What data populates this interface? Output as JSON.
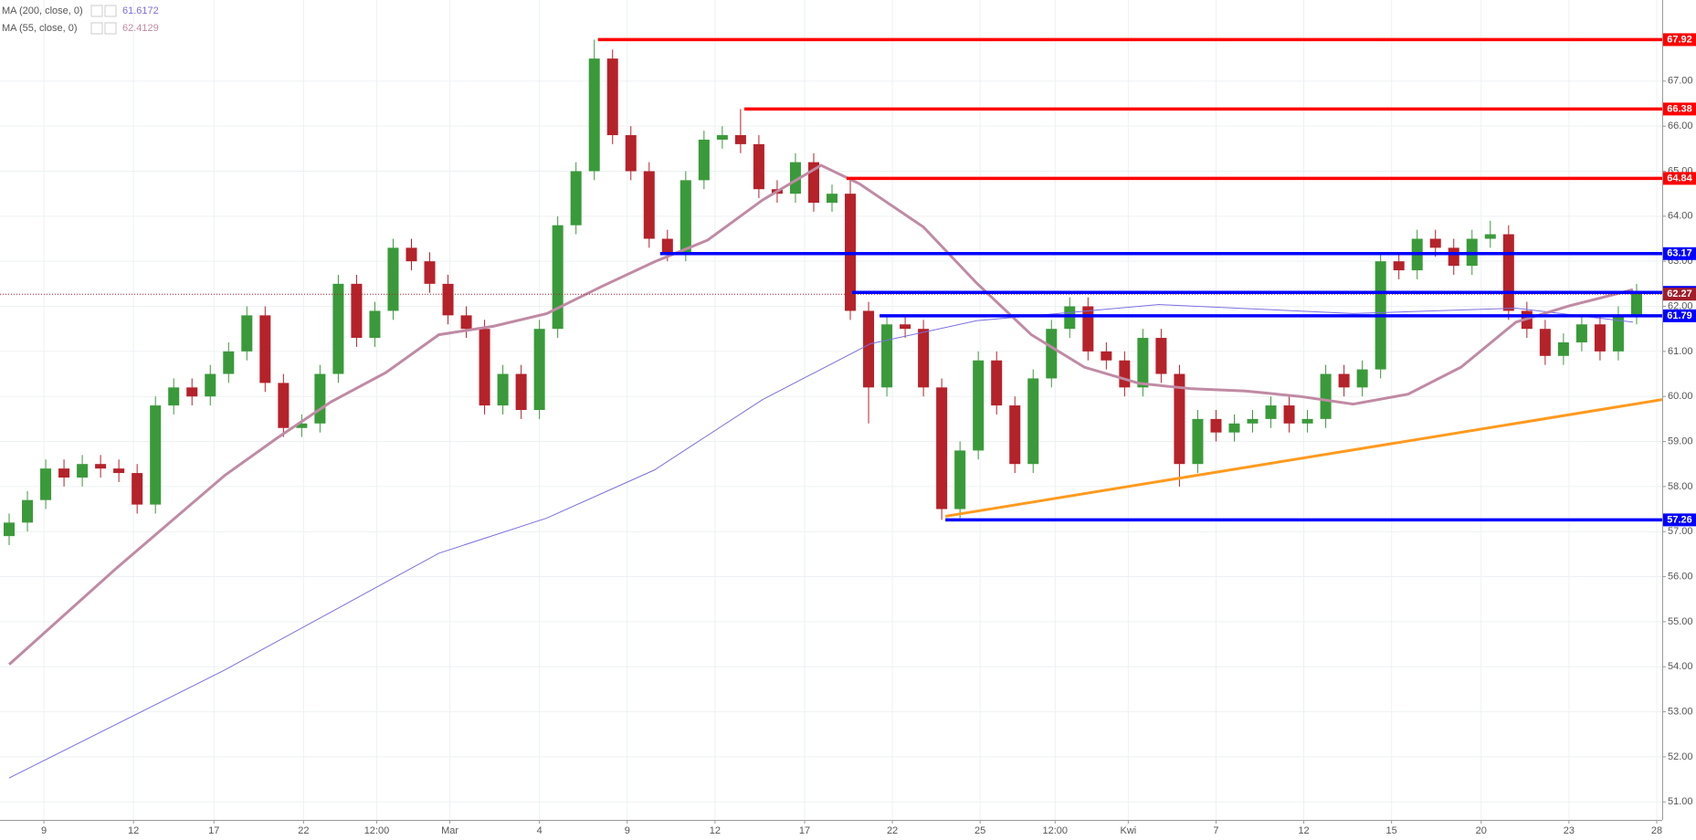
{
  "chart_data": {
    "type": "candlestick",
    "xlim": [
      -0.5,
      90.4
    ],
    "ylim": [
      50.6,
      68.8
    ],
    "xticks": [
      {
        "value": 1.9,
        "label": "9"
      },
      {
        "value": 6.8,
        "label": "12"
      },
      {
        "value": 11.2,
        "label": "17"
      },
      {
        "value": 16.1,
        "label": "22"
      },
      {
        "value": 20.1,
        "label": "12:00"
      },
      {
        "value": 24.1,
        "label": "Mar"
      },
      {
        "value": 29.0,
        "label": "4"
      },
      {
        "value": 33.8,
        "label": "9"
      },
      {
        "value": 38.6,
        "label": "12"
      },
      {
        "value": 43.5,
        "label": "17"
      },
      {
        "value": 48.3,
        "label": "22"
      },
      {
        "value": 53.1,
        "label": "25"
      },
      {
        "value": 57.2,
        "label": "12:00"
      },
      {
        "value": 61.2,
        "label": "Kwi"
      },
      {
        "value": 66.0,
        "label": "7"
      },
      {
        "value": 70.8,
        "label": "12"
      },
      {
        "value": 75.6,
        "label": "15"
      },
      {
        "value": 80.5,
        "label": "20"
      },
      {
        "value": 85.3,
        "label": "23"
      },
      {
        "value": 90.1,
        "label": "28"
      }
    ],
    "yticks": [
      {
        "value": 51,
        "label": "51.00"
      },
      {
        "value": 52,
        "label": "52.00"
      },
      {
        "value": 53,
        "label": "53.00"
      },
      {
        "value": 54,
        "label": "54.00"
      },
      {
        "value": 55,
        "label": "55.00"
      },
      {
        "value": 56,
        "label": "56.00"
      },
      {
        "value": 57,
        "label": "57.00"
      },
      {
        "value": 58,
        "label": "58.00"
      },
      {
        "value": 59,
        "label": "59.00"
      },
      {
        "value": 60,
        "label": "60.00"
      },
      {
        "value": 61,
        "label": "61.00"
      },
      {
        "value": 62,
        "label": "62.00"
      },
      {
        "value": 63,
        "label": "63.00"
      },
      {
        "value": 64,
        "label": "64.00"
      },
      {
        "value": 65,
        "label": "65.00"
      },
      {
        "value": 66,
        "label": "66.00"
      },
      {
        "value": 67,
        "label": "67.00"
      }
    ],
    "grid": true,
    "up_color": "#3a9a3a",
    "down_color": "#b5222a",
    "x": [
      0,
      1,
      2,
      3,
      4,
      5,
      6,
      7,
      8,
      9,
      10,
      11,
      12,
      13,
      14,
      15,
      16,
      17,
      18,
      19,
      20,
      21,
      22,
      23,
      24,
      25,
      26,
      27,
      28,
      29,
      30,
      31,
      32,
      33,
      34,
      35,
      36,
      37,
      38,
      39,
      40,
      41,
      42,
      43,
      44,
      45,
      46,
      47,
      48,
      49,
      50,
      51,
      52,
      53,
      54,
      55,
      56,
      57,
      58,
      59,
      60,
      61,
      62,
      63,
      64,
      65,
      66,
      67,
      68,
      69,
      70,
      71,
      72,
      73,
      74,
      75,
      76,
      77,
      78,
      79,
      80,
      81,
      82,
      83,
      84,
      85,
      86,
      87,
      88,
      89
    ],
    "open": [
      56.9,
      57.2,
      57.7,
      58.4,
      58.2,
      58.5,
      58.4,
      58.3,
      57.6,
      59.8,
      60.2,
      60.0,
      60.5,
      61.0,
      61.8,
      60.3,
      59.3,
      59.4,
      60.5,
      62.5,
      61.3,
      61.9,
      63.3,
      63.0,
      62.5,
      61.8,
      61.5,
      59.8,
      60.5,
      59.7,
      61.5,
      63.8,
      65.0,
      67.5,
      65.8,
      65.0,
      63.5,
      63.2,
      64.8,
      65.7,
      65.8,
      65.6,
      64.6,
      64.5,
      65.2,
      64.3,
      64.5,
      61.9,
      60.2,
      61.6,
      61.5,
      60.2,
      57.5,
      58.8,
      60.8,
      59.8,
      58.5,
      60.4,
      61.5,
      62.0,
      61.0,
      60.8,
      60.2,
      61.3,
      60.5,
      58.5,
      59.5,
      59.2,
      59.4,
      59.5,
      59.8,
      59.4,
      59.5,
      60.5,
      60.2,
      60.6,
      63.0,
      62.8,
      63.5,
      63.3,
      62.9,
      63.5,
      63.6,
      61.9,
      61.5,
      60.9,
      61.2,
      61.6,
      61.0,
      61.8
    ],
    "high": [
      57.4,
      57.9,
      58.6,
      58.6,
      58.7,
      58.7,
      58.6,
      58.5,
      60.0,
      60.4,
      60.4,
      60.7,
      61.2,
      62.0,
      62.0,
      60.5,
      59.6,
      60.7,
      62.7,
      62.7,
      62.1,
      63.5,
      63.5,
      63.2,
      62.7,
      62.0,
      61.7,
      60.7,
      60.7,
      61.7,
      64.0,
      65.2,
      67.92,
      67.7,
      66.0,
      65.2,
      63.7,
      65.0,
      65.9,
      66.0,
      66.38,
      65.8,
      64.8,
      65.4,
      65.4,
      64.7,
      64.84,
      62.1,
      61.8,
      61.8,
      61.7,
      60.4,
      59.0,
      61.0,
      61.0,
      60.0,
      60.6,
      61.7,
      62.2,
      62.2,
      61.2,
      61.0,
      61.5,
      61.5,
      60.7,
      59.7,
      59.7,
      59.6,
      59.7,
      60.0,
      60.0,
      59.7,
      60.7,
      60.7,
      60.8,
      63.2,
      63.2,
      63.7,
      63.7,
      63.5,
      63.7,
      63.9,
      63.8,
      62.1,
      61.7,
      61.4,
      61.8,
      61.8,
      62.0,
      62.5
    ],
    "low": [
      56.7,
      57.0,
      57.5,
      58.0,
      58.0,
      58.2,
      58.1,
      57.4,
      57.4,
      59.6,
      59.8,
      59.8,
      60.3,
      60.8,
      60.1,
      59.1,
      59.1,
      59.2,
      60.3,
      61.1,
      61.1,
      61.7,
      62.8,
      62.3,
      61.6,
      61.3,
      59.6,
      59.6,
      59.5,
      59.5,
      61.3,
      63.6,
      64.8,
      65.6,
      64.8,
      63.3,
      63.0,
      63.0,
      64.6,
      65.5,
      65.4,
      64.4,
      64.3,
      64.3,
      64.1,
      64.1,
      61.7,
      59.4,
      60.0,
      61.3,
      60.0,
      57.26,
      57.3,
      58.6,
      59.6,
      58.3,
      58.3,
      60.2,
      61.3,
      60.8,
      60.6,
      60.0,
      60.0,
      60.3,
      58.0,
      58.3,
      59.0,
      59.0,
      59.2,
      59.3,
      59.2,
      59.2,
      59.3,
      60.0,
      60.0,
      60.4,
      62.6,
      62.6,
      63.1,
      62.7,
      62.7,
      63.3,
      61.7,
      61.3,
      60.7,
      60.7,
      61.0,
      60.8,
      60.8,
      61.6
    ],
    "close": [
      57.2,
      57.7,
      58.4,
      58.2,
      58.5,
      58.4,
      58.3,
      57.6,
      59.8,
      60.2,
      60.0,
      60.5,
      61.0,
      61.8,
      60.3,
      59.3,
      59.4,
      60.5,
      62.5,
      61.3,
      61.9,
      63.3,
      63.0,
      62.5,
      61.8,
      61.5,
      59.8,
      60.5,
      59.7,
      61.5,
      63.8,
      65.0,
      67.5,
      65.8,
      65.0,
      63.5,
      63.2,
      64.8,
      65.7,
      65.8,
      65.6,
      64.6,
      64.5,
      65.2,
      64.3,
      64.5,
      61.9,
      60.2,
      61.6,
      61.5,
      60.2,
      57.5,
      58.8,
      60.8,
      59.8,
      58.5,
      60.4,
      61.5,
      62.0,
      61.0,
      60.8,
      60.2,
      61.3,
      60.5,
      58.5,
      59.5,
      59.2,
      59.4,
      59.5,
      59.8,
      59.4,
      59.5,
      60.5,
      60.2,
      60.6,
      63.0,
      62.8,
      63.5,
      63.3,
      62.9,
      63.5,
      63.6,
      61.9,
      61.5,
      60.9,
      61.2,
      61.6,
      61.0,
      61.8,
      62.3
    ],
    "series": [
      {
        "name": "MA (200, close, 0)",
        "last_value": 61.6172,
        "color": "#7b6fe0",
        "width": 1,
        "x": [
          0,
          11.8,
          23.5,
          29.4,
          35.3,
          41.2,
          47.1,
          52.9,
          62.9,
          73.5,
          82.4,
          88.8
        ],
        "values": [
          51.53,
          53.93,
          56.52,
          57.3,
          58.37,
          59.93,
          61.17,
          61.68,
          62.04,
          61.84,
          61.96,
          61.65
        ]
      },
      {
        "name": "MA (55, close, 0)",
        "last_value": 62.4129,
        "color": "#c08aa4",
        "width": 3,
        "x": [
          0,
          5.9,
          11.8,
          14.7,
          17.6,
          20.6,
          23.5,
          26.5,
          29.4,
          32.4,
          35.3,
          38.2,
          41.2,
          44.4,
          46.5,
          50,
          52.9,
          55.9,
          58.8,
          61.8,
          64.7,
          67.6,
          70.6,
          73.5,
          76.5,
          79.4,
          82.4,
          85.3,
          88.8
        ],
        "values": [
          54.05,
          56.2,
          58.25,
          59.09,
          59.88,
          60.53,
          61.37,
          61.56,
          61.84,
          62.44,
          62.99,
          63.47,
          64.36,
          65.13,
          64.72,
          63.76,
          62.52,
          61.37,
          60.65,
          60.29,
          60.17,
          60.12,
          60.0,
          59.83,
          60.05,
          60.65,
          61.65,
          62.01,
          62.37
        ]
      }
    ],
    "levels": [
      {
        "value": 67.92,
        "x_start": 32.2,
        "color": "#ff0000"
      },
      {
        "value": 66.38,
        "x_start": 40.2,
        "color": "#ff0000"
      },
      {
        "value": 64.84,
        "x_start": 45.8,
        "color": "#ff0000"
      },
      {
        "value": 63.17,
        "x_start": 35.6,
        "color": "#0000ff"
      },
      {
        "value": 62.31,
        "x_start": 46.1,
        "color": "#0000ff"
      },
      {
        "value": 61.79,
        "x_start": 47.6,
        "color": "#0000ff"
      },
      {
        "value": 57.26,
        "x_start": 51.2,
        "color": "#0000ff"
      }
    ],
    "current_price": {
      "value": 62.27,
      "color": "#a11d2a"
    },
    "trendline": {
      "color": "#ff9a1f",
      "x": [
        51.2,
        90.4
      ],
      "y": [
        57.34,
        59.93
      ]
    }
  }
}
